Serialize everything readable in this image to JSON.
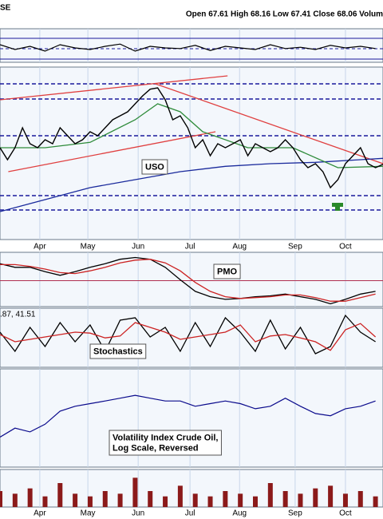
{
  "chart_data": [
    {
      "type": "line",
      "header_left": "SE",
      "header_right": "Open 67.61 High 68.16 Low 67.41 Close 68.06 Volum",
      "label": "USO",
      "x": [
        0,
        1,
        2,
        3,
        4,
        5,
        6,
        7,
        8,
        9,
        10,
        11,
        12,
        13,
        14,
        15,
        16,
        17,
        18,
        19,
        20,
        21,
        22,
        23,
        24,
        25,
        26,
        27,
        28,
        29,
        30,
        31,
        32,
        33,
        34,
        35,
        36,
        37,
        38,
        39,
        40,
        41,
        42,
        43,
        44,
        45,
        46,
        47,
        48,
        49,
        50,
        51
      ],
      "values": [
        69.3,
        68.4,
        69.3,
        70.8,
        69.6,
        69.3,
        69.9,
        69.6,
        70.8,
        70.2,
        69.6,
        69.9,
        70.5,
        70.2,
        70.8,
        71.4,
        71.7,
        72.0,
        72.6,
        73.2,
        73.7,
        73.8,
        72.9,
        71.4,
        71.7,
        70.8,
        69.3,
        69.9,
        68.7,
        69.6,
        69.3,
        69.6,
        69.9,
        68.7,
        69.6,
        69.3,
        69.0,
        69.3,
        69.9,
        69.3,
        68.4,
        67.8,
        68.1,
        67.5,
        66.3,
        66.9,
        68.1,
        68.7,
        69.3,
        68.1,
        67.8,
        68.06
      ],
      "color": "#000000",
      "xlim": [
        0,
        51
      ],
      "ylim": [
        62.4,
        75
      ],
      "xticks": [
        {
          "value": 5.3,
          "label": "Apr"
        },
        {
          "value": 11.7,
          "label": "May"
        },
        {
          "value": 18.4,
          "label": "Jun"
        },
        {
          "value": 25.3,
          "label": "Jul"
        },
        {
          "value": 31.9,
          "label": "Aug"
        },
        {
          "value": 39.3,
          "label": "Sep"
        },
        {
          "value": 46,
          "label": "Oct"
        }
      ],
      "levels": [
        74.1,
        72.96,
        70.2,
        65.7,
        64.62
      ],
      "level_color": "#1a1a9c",
      "overlays": [
        {
          "color": "#1a2a9c",
          "x": [
            0,
            6,
            12,
            18,
            24,
            30,
            36,
            42,
            48,
            51
          ],
          "values": [
            64.5,
            65.4,
            66.3,
            66.9,
            67.5,
            67.9,
            68.1,
            68.2,
            68.4,
            68.5
          ]
        },
        {
          "color": "#2e8b3a",
          "x": [
            0,
            6,
            12,
            18,
            21,
            24,
            27,
            33,
            39,
            45,
            51
          ],
          "values": [
            69.3,
            69.3,
            69.7,
            71.4,
            72.6,
            72.0,
            70.5,
            69.3,
            69.3,
            67.8,
            67.9
          ]
        }
      ],
      "trendlines": [
        {
          "color": "#e04040",
          "x": [
            0,
            30.3
          ],
          "values": [
            72.9,
            74.7
          ]
        },
        {
          "color": "#e04040",
          "x": [
            1.1,
            28.7
          ],
          "values": [
            67.5,
            70.5
          ]
        },
        {
          "color": "#e04040",
          "x": [
            20.7,
            51
          ],
          "values": [
            74.1,
            68.1
          ]
        }
      ]
    },
    {
      "type": "line",
      "x": [
        0,
        2,
        4,
        6,
        8,
        10,
        12,
        14,
        16,
        18,
        20,
        22,
        24,
        26,
        28,
        30,
        32,
        34,
        36,
        38,
        40,
        42,
        44,
        46,
        48,
        50
      ],
      "values": [
        60,
        45,
        55,
        40,
        60,
        50,
        45,
        55,
        62,
        40,
        55,
        50,
        48,
        58,
        42,
        55,
        50,
        45,
        60,
        48,
        52,
        45,
        58,
        50,
        55,
        48
      ],
      "color": "#000000",
      "xlim": [
        0,
        51
      ],
      "ylim": [
        0,
        100
      ]
    },
    {
      "type": "line",
      "label": "PMO",
      "x": [
        0,
        2,
        4,
        6,
        8,
        10,
        12,
        14,
        16,
        18,
        20,
        22,
        24,
        26,
        28,
        30,
        32,
        34,
        36,
        38,
        40,
        42,
        44,
        46,
        48,
        50
      ],
      "series": [
        {
          "color": "#000000",
          "values": [
            1.9,
            1.5,
            1.5,
            1.0,
            0.6,
            1.0,
            1.5,
            1.9,
            2.4,
            2.6,
            2.4,
            1.5,
            0.1,
            -1.2,
            -1.8,
            -2.1,
            -2.0,
            -1.8,
            -1.7,
            -1.5,
            -1.8,
            -2.1,
            -2.6,
            -2.1,
            -1.5,
            -1.2
          ]
        },
        {
          "color": "#cc2222",
          "values": [
            1.8,
            1.8,
            1.6,
            1.3,
            0.9,
            0.8,
            1.1,
            1.5,
            2.0,
            2.3,
            2.4,
            2.0,
            1.1,
            -0.2,
            -1.2,
            -1.8,
            -2.0,
            -1.9,
            -1.8,
            -1.6,
            -1.6,
            -1.9,
            -2.3,
            -2.3,
            -1.9,
            -1.5
          ]
        }
      ],
      "xlim": [
        0,
        51
      ],
      "ylim": [
        -3,
        3
      ]
    },
    {
      "type": "line",
      "label": "Stochastics",
      "legend_text": ".87, 41.51",
      "x": [
        0,
        2,
        4,
        6,
        8,
        10,
        12,
        14,
        16,
        18,
        20,
        22,
        24,
        26,
        28,
        30,
        32,
        34,
        36,
        38,
        40,
        42,
        44,
        46,
        48,
        50
      ],
      "series": [
        {
          "color": "#000000",
          "values": [
            60,
            20,
            70,
            30,
            80,
            40,
            75,
            20,
            85,
            90,
            50,
            70,
            20,
            80,
            30,
            90,
            60,
            20,
            85,
            25,
            70,
            15,
            30,
            95,
            60,
            40
          ]
        },
        {
          "color": "#cc2222",
          "values": [
            55,
            40,
            45,
            50,
            55,
            60,
            58,
            48,
            52,
            80,
            70,
            60,
            45,
            50,
            55,
            60,
            75,
            40,
            52,
            55,
            48,
            40,
            22,
            65,
            78,
            50
          ]
        }
      ],
      "xlim": [
        0,
        51
      ],
      "ylim": [
        0,
        100
      ]
    },
    {
      "type": "line",
      "label": [
        "Volatility Index Crude Oil,",
        "Log Scale, Reversed"
      ],
      "x": [
        0,
        2,
        4,
        6,
        8,
        10,
        12,
        14,
        16,
        18,
        20,
        22,
        24,
        26,
        28,
        30,
        32,
        34,
        36,
        38,
        40,
        42,
        44,
        46,
        48,
        50
      ],
      "values": [
        45,
        40,
        42,
        38,
        32,
        30,
        29,
        28,
        27,
        26,
        27,
        28,
        28,
        30,
        29,
        28,
        29,
        31,
        30,
        27,
        30,
        33,
        34,
        31,
        30,
        28
      ],
      "color": "#0a0a8c",
      "xlim": [
        0,
        51
      ],
      "ylim": [
        60,
        20
      ],
      "log": true
    },
    {
      "type": "bar",
      "x": [
        0,
        2,
        4,
        6,
        8,
        10,
        12,
        14,
        16,
        18,
        20,
        22,
        24,
        26,
        28,
        30,
        32,
        34,
        36,
        38,
        40,
        42,
        44,
        46,
        48,
        50
      ],
      "values": [
        30,
        25,
        35,
        20,
        45,
        25,
        20,
        30,
        25,
        55,
        30,
        20,
        40,
        25,
        20,
        30,
        25,
        20,
        45,
        30,
        25,
        35,
        40,
        25,
        30,
        20
      ],
      "color": "#8b1a1a",
      "xlim": [
        0,
        51
      ],
      "ylim": [
        0,
        60
      ],
      "xticks_from": 0
    }
  ]
}
